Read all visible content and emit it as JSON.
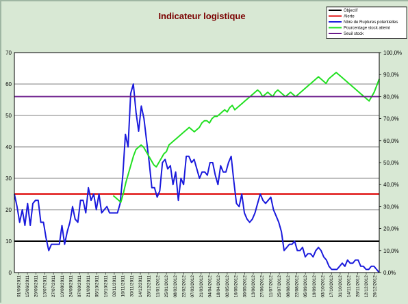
{
  "chart_data": {
    "type": "line",
    "title": "Indicateur logistique",
    "y_left_lim": [
      0,
      70
    ],
    "y_left_ticks": [
      "0",
      "10",
      "20",
      "30",
      "40",
      "50",
      "60",
      "70"
    ],
    "y_right_lim": [
      0,
      1.0
    ],
    "y_right_ticks": [
      "0,0%",
      "10,0%",
      "20,0%",
      "30,0%",
      "40,0%",
      "50,0%",
      "60,0%",
      "70,0%",
      "80,0%",
      "90,0%",
      "100,0%"
    ],
    "grid": true,
    "legend_position": "top-right",
    "x_labels": [
      "01/06/2011",
      "15/06/2011",
      "29/06/2011",
      "13/07/2011",
      "27/07/2011",
      "10/08/2011",
      "24/08/2011",
      "07/09/2011",
      "21/09/2011",
      "05/10/2011",
      "19/10/2011",
      "02/11/2011",
      "16/11/2011",
      "30/11/2011",
      "14/12/2011",
      "28/12/2011",
      "11/01/2012",
      "25/01/2012",
      "08/02/2012",
      "22/02/2012",
      "07/03/2012",
      "21/03/2012",
      "04/04/2012",
      "18/04/2012",
      "02/05/2012",
      "16/05/2012",
      "30/05/2012",
      "13/06/2012",
      "27/06/2012",
      "11/07/2012",
      "25/07/2012",
      "08/08/2012",
      "22/08/2012",
      "05/09/2012",
      "19/09/2012",
      "03/10/2012",
      "17/10/2012",
      "31/10/2012",
      "14/11/2012",
      "28/11/2012",
      "12/12/2012",
      "26/12/2012"
    ],
    "series": [
      {
        "name": "Objectif",
        "axis": "left",
        "color": "#000000",
        "values": [
          10,
          10
        ]
      },
      {
        "name": "Alerte",
        "axis": "left",
        "color": "#dd0000",
        "values": [
          25,
          25
        ]
      },
      {
        "name": "Nbre de Ruptures potentielles",
        "axis": "left",
        "color": "#1a1adc",
        "values": [
          25,
          21,
          16,
          20,
          15,
          22,
          15,
          22,
          23,
          23,
          16,
          16,
          11,
          7,
          9,
          9,
          9,
          9,
          15,
          9,
          13,
          16,
          21,
          17,
          16,
          23,
          23,
          19,
          27,
          23,
          25,
          20,
          25,
          19,
          20,
          21,
          19,
          19,
          19,
          19,
          22,
          31,
          44,
          40,
          57,
          60,
          51,
          45,
          53,
          49,
          42,
          35,
          27,
          27,
          24,
          26,
          35,
          36,
          33,
          34,
          28,
          32,
          23,
          30,
          28,
          37,
          37,
          35,
          36,
          33,
          30,
          32,
          32,
          31,
          35,
          35,
          31,
          28,
          34,
          32,
          32,
          35,
          37,
          29,
          22,
          21,
          25,
          19,
          17,
          16,
          17,
          19,
          22,
          25,
          23,
          22,
          23,
          24,
          20,
          18,
          16,
          13,
          7,
          8,
          9,
          9,
          10,
          7,
          7,
          8,
          5,
          6,
          6,
          5,
          7,
          8,
          7,
          5,
          4,
          2,
          1,
          1,
          1,
          2,
          3,
          2,
          4,
          3,
          3,
          4,
          4,
          2,
          2,
          1,
          1,
          2,
          2,
          1,
          0
        ]
      },
      {
        "name": "Pourcentage stock atteint",
        "axis": "right",
        "color": "#22e022",
        "values": [
          null,
          null,
          null,
          null,
          null,
          null,
          null,
          null,
          null,
          null,
          null,
          null,
          null,
          null,
          null,
          null,
          null,
          null,
          null,
          null,
          null,
          null,
          null,
          null,
          null,
          null,
          null,
          null,
          null,
          null,
          null,
          null,
          null,
          null,
          null,
          null,
          null,
          null,
          null,
          0.35,
          0.34,
          0.33,
          0.32,
          0.36,
          0.41,
          0.45,
          0.49,
          0.53,
          0.56,
          0.57,
          0.58,
          0.57,
          0.55,
          0.53,
          0.51,
          0.49,
          0.48,
          0.5,
          0.52,
          0.54,
          0.55,
          0.58,
          0.59,
          0.6,
          0.61,
          0.62,
          0.63,
          0.64,
          0.65,
          0.66,
          0.65,
          0.64,
          0.65,
          0.66,
          0.68,
          0.69,
          0.69,
          0.68,
          0.7,
          0.71,
          0.71,
          0.72,
          0.73,
          0.74,
          0.73,
          0.75,
          0.76,
          0.74,
          0.75,
          0.76,
          0.77,
          0.78,
          0.79,
          0.8,
          0.81,
          0.82,
          0.83,
          0.82,
          0.8,
          0.81,
          0.82,
          0.81,
          0.8,
          0.82,
          0.83,
          0.82,
          0.81,
          0.8,
          0.81,
          0.82,
          0.81,
          0.8,
          0.81,
          0.82,
          0.83,
          0.84,
          0.85,
          0.86,
          0.87,
          0.88,
          0.89,
          0.88,
          0.87,
          0.86,
          0.88,
          0.89,
          0.9,
          0.91,
          0.9,
          0.89,
          0.88,
          0.87,
          0.86,
          0.85,
          0.84,
          0.83,
          0.82,
          0.81,
          0.8,
          0.79,
          0.78,
          0.8,
          0.82,
          0.85,
          0.88
        ]
      },
      {
        "name": "Seuil stock",
        "axis": "left",
        "color": "#6a1a8a",
        "values": [
          56,
          56
        ]
      }
    ]
  }
}
